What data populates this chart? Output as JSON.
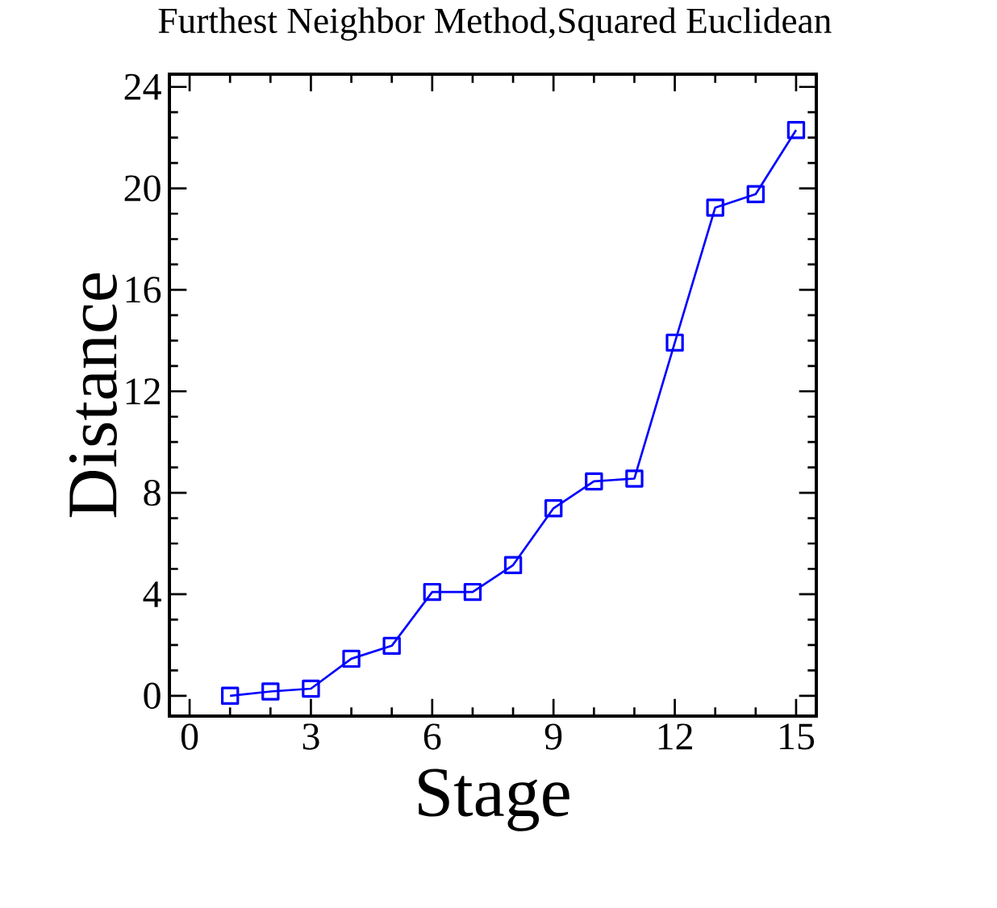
{
  "chart_data": {
    "type": "line",
    "title": "Furthest Neighbor Method,Squared Euclidean",
    "xlabel": "Stage",
    "ylabel": "Distance",
    "x": [
      1,
      2,
      3,
      4,
      5,
      6,
      7,
      8,
      9,
      10,
      11,
      12,
      13,
      14,
      15
    ],
    "series": [
      {
        "color": "#0000ff",
        "values": [
          0,
          0.17,
          0.28,
          1.46,
          1.97,
          4.09,
          4.09,
          5.15,
          7.39,
          8.45,
          8.56,
          13.92,
          19.24,
          19.77,
          22.3
        ]
      }
    ],
    "xlim": [
      -0.5,
      15.5
    ],
    "ylim": [
      -0.8,
      24.5
    ],
    "xticks": [
      0,
      3,
      6,
      9,
      12,
      15
    ],
    "yticks": [
      0,
      4,
      8,
      12,
      16,
      20,
      24
    ],
    "marker": "square",
    "line_style": "solid"
  }
}
